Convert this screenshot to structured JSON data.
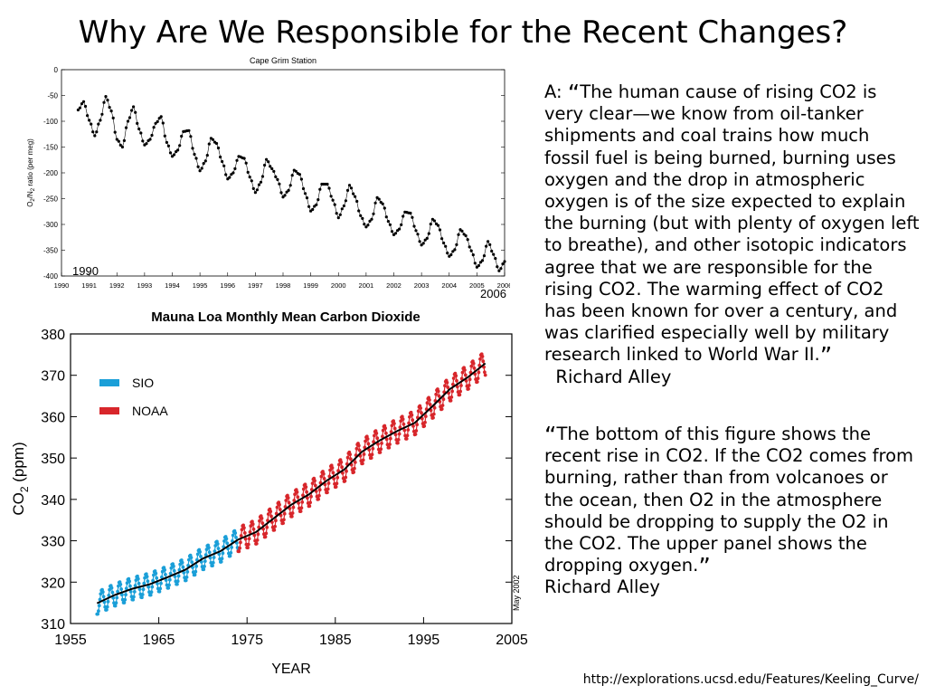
{
  "slide": {
    "title": "Why Are We Responsible for the Recent Changes?",
    "quote_a_prefix": "A: ",
    "quote_a_open": "“",
    "quote_a_text": "The human cause of rising CO2 is very clear—we know from oil-tanker shipments and coal trains how much fossil fuel is being burned, burning uses oxygen and the drop in atmospheric oxygen is of the size expected to explain the burning (but with plenty of oxygen left to breathe), and other isotopic indicators agree that we are responsible for the rising CO2. The warming effect of CO2 has been known for over a century, and was clarified especially well by military research linked to World War II.",
    "quote_a_close": "”",
    "quote_a_author": "  Richard Alley",
    "quote_b_open": "“",
    "quote_b_text": "The bottom of this figure shows the recent rise in CO2. If the CO2 comes from burning, rather than from volcanoes or the ocean, then O2 in the atmosphere should be dropping to supply the O2 in the CO2. The upper panel shows the dropping oxygen.",
    "quote_b_close": "”",
    "quote_b_author": "Richard Alley",
    "source_url": "http://explorations.ucsd.edu/Features/Keeling_Curve/",
    "label_1990": "1990",
    "label_2006": "2006"
  },
  "chart_data": [
    {
      "type": "scatter",
      "title": "Cape Grim Station",
      "ylabel": "O2/N2 ratio (per meg)",
      "ylabel_parts": [
        "O",
        "2",
        "/N",
        "2",
        " ratio (per meg)"
      ],
      "xlabel": "",
      "xlim": [
        1990,
        2006
      ],
      "ylim": [
        -400,
        0
      ],
      "x_ticks": [
        "1990",
        "1991",
        "1992",
        "1993",
        "1994",
        "1995",
        "1996",
        "1997",
        "1998",
        "1999",
        "2000",
        "2001",
        "2002",
        "2003",
        "2004",
        "2005",
        "2006"
      ],
      "y_ticks": [
        "0",
        "-50",
        "-100",
        "-150",
        "-200",
        "-250",
        "-300",
        "-350",
        "-400"
      ],
      "grid": false,
      "series": [
        {
          "color": "#000000",
          "x": [
            1990.6,
            1990.8,
            1991.0,
            1991.2,
            1991.4,
            1991.6,
            1991.8,
            1992.0,
            1992.2,
            1992.4,
            1992.6,
            1992.8,
            1993.0,
            1993.2,
            1993.4,
            1993.6,
            1993.8,
            1994.0,
            1994.2,
            1994.4,
            1994.6,
            1994.8,
            1995.0,
            1995.2,
            1995.4,
            1995.6,
            1995.8,
            1996.0,
            1996.2,
            1996.4,
            1996.6,
            1996.8,
            1997.0,
            1997.2,
            1997.4,
            1997.6,
            1997.8,
            1998.0,
            1998.2,
            1998.4,
            1998.6,
            1998.8,
            1999.0,
            1999.2,
            1999.4,
            1999.6,
            1999.8,
            2000.0,
            2000.2,
            2000.4,
            2000.6,
            2000.8,
            2001.0,
            2001.2,
            2001.4,
            2001.6,
            2001.8,
            2002.0,
            2002.2,
            2002.4,
            2002.6,
            2002.8,
            2003.0,
            2003.2,
            2003.4,
            2003.6,
            2003.8,
            2004.0,
            2004.2,
            2004.4,
            2004.6,
            2004.8,
            2005.0,
            2005.2,
            2005.4,
            2005.6,
            2005.8,
            2006.0
          ],
          "y": [
            -78,
            -62,
            -98,
            -128,
            -98,
            -52,
            -80,
            -135,
            -150,
            -100,
            -72,
            -115,
            -146,
            -135,
            -104,
            -91,
            -141,
            -168,
            -156,
            -120,
            -118,
            -164,
            -196,
            -177,
            -133,
            -143,
            -178,
            -212,
            -200,
            -168,
            -172,
            -208,
            -238,
            -218,
            -174,
            -192,
            -213,
            -247,
            -234,
            -195,
            -203,
            -240,
            -274,
            -262,
            -222,
            -222,
            -253,
            -287,
            -264,
            -224,
            -246,
            -283,
            -305,
            -290,
            -248,
            -260,
            -294,
            -320,
            -309,
            -276,
            -278,
            -312,
            -340,
            -327,
            -290,
            -302,
            -336,
            -362,
            -349,
            -310,
            -322,
            -351,
            -383,
            -370,
            -333,
            -358,
            -390,
            -372
          ]
        }
      ]
    },
    {
      "type": "line",
      "title": "Mauna Loa Monthly Mean Carbon Dioxide",
      "xlabel": "YEAR",
      "ylabel": "CO2 (ppm)",
      "ylabel_parts": [
        "CO",
        "2",
        " (ppm)"
      ],
      "xlim": [
        1955,
        2005
      ],
      "ylim": [
        310,
        380
      ],
      "x_ticks": [
        "1955",
        "1965",
        "1975",
        "1985",
        "1995",
        "2005"
      ],
      "y_ticks": [
        "310",
        "320",
        "330",
        "340",
        "350",
        "360",
        "370",
        "380"
      ],
      "grid": false,
      "legend_position": "top-left",
      "annotation": "May 2002",
      "series": [
        {
          "name": "SIO",
          "color": "#1a9fd8",
          "x_range": [
            1958,
            1974
          ],
          "trend_x": [
            1958,
            1960,
            1962,
            1964,
            1966,
            1968,
            1970,
            1972,
            1974
          ],
          "trend_y": [
            314.9,
            316.9,
            318.4,
            319.5,
            321.2,
            323.0,
            325.7,
            327.5,
            330.3
          ],
          "seasonal_amplitude": 5.5
        },
        {
          "name": "NOAA",
          "color": "#d8262b",
          "x_range": [
            1974,
            2002
          ],
          "trend_x": [
            1974,
            1976,
            1978,
            1980,
            1982,
            1984,
            1986,
            1988,
            1990,
            1992,
            1994,
            1996,
            1998,
            2000,
            2002
          ],
          "trend_y": [
            330.3,
            332.1,
            335.4,
            338.7,
            341.2,
            344.5,
            347.2,
            351.5,
            354.2,
            356.5,
            358.5,
            362.5,
            366.7,
            369.5,
            372.9
          ],
          "seasonal_amplitude": 6.0
        },
        {
          "name": "",
          "color": "#000000",
          "x": [
            1958,
            1960,
            1962,
            1964,
            1966,
            1968,
            1970,
            1972,
            1974,
            1976,
            1978,
            1980,
            1982,
            1984,
            1986,
            1988,
            1990,
            1992,
            1994,
            1996,
            1998,
            2000,
            2002
          ],
          "y": [
            314.9,
            316.9,
            318.4,
            319.5,
            321.2,
            323.0,
            325.7,
            327.5,
            330.3,
            332.1,
            335.4,
            338.7,
            341.2,
            344.5,
            347.2,
            351.5,
            354.2,
            356.5,
            358.5,
            362.5,
            366.7,
            369.5,
            372.9
          ]
        }
      ]
    }
  ]
}
